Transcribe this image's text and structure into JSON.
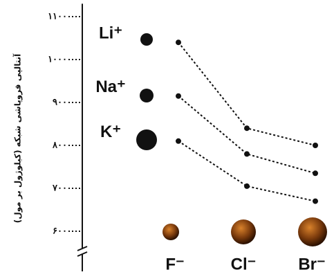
{
  "chart_data": {
    "type": "line",
    "y_label": "آنتالپی فروپاشی شبکه (کیلوژول بر مول)",
    "categories": [
      "F⁻",
      "Cl⁻",
      "Br⁻"
    ],
    "series": [
      {
        "name": "Li⁺",
        "color": "#111111",
        "values": [
          1040,
          840,
          800
        ]
      },
      {
        "name": "Na⁺",
        "color": "#111111",
        "values": [
          915,
          780,
          735
        ]
      },
      {
        "name": "K⁺",
        "color": "#111111",
        "values": [
          810,
          705,
          670
        ]
      }
    ],
    "ylim": [
      560,
      1130
    ],
    "yticks": [
      {
        "value": 600,
        "label": "۶۰۰"
      },
      {
        "value": 700,
        "label": "۷۰۰"
      },
      {
        "value": 800,
        "label": "۸۰۰"
      },
      {
        "value": 900,
        "label": "۹۰۰"
      },
      {
        "value": 1000,
        "label": "۱۰۰۰"
      },
      {
        "value": 1100,
        "label": "۱۱۰۰"
      }
    ],
    "line_style": "dotted"
  }
}
